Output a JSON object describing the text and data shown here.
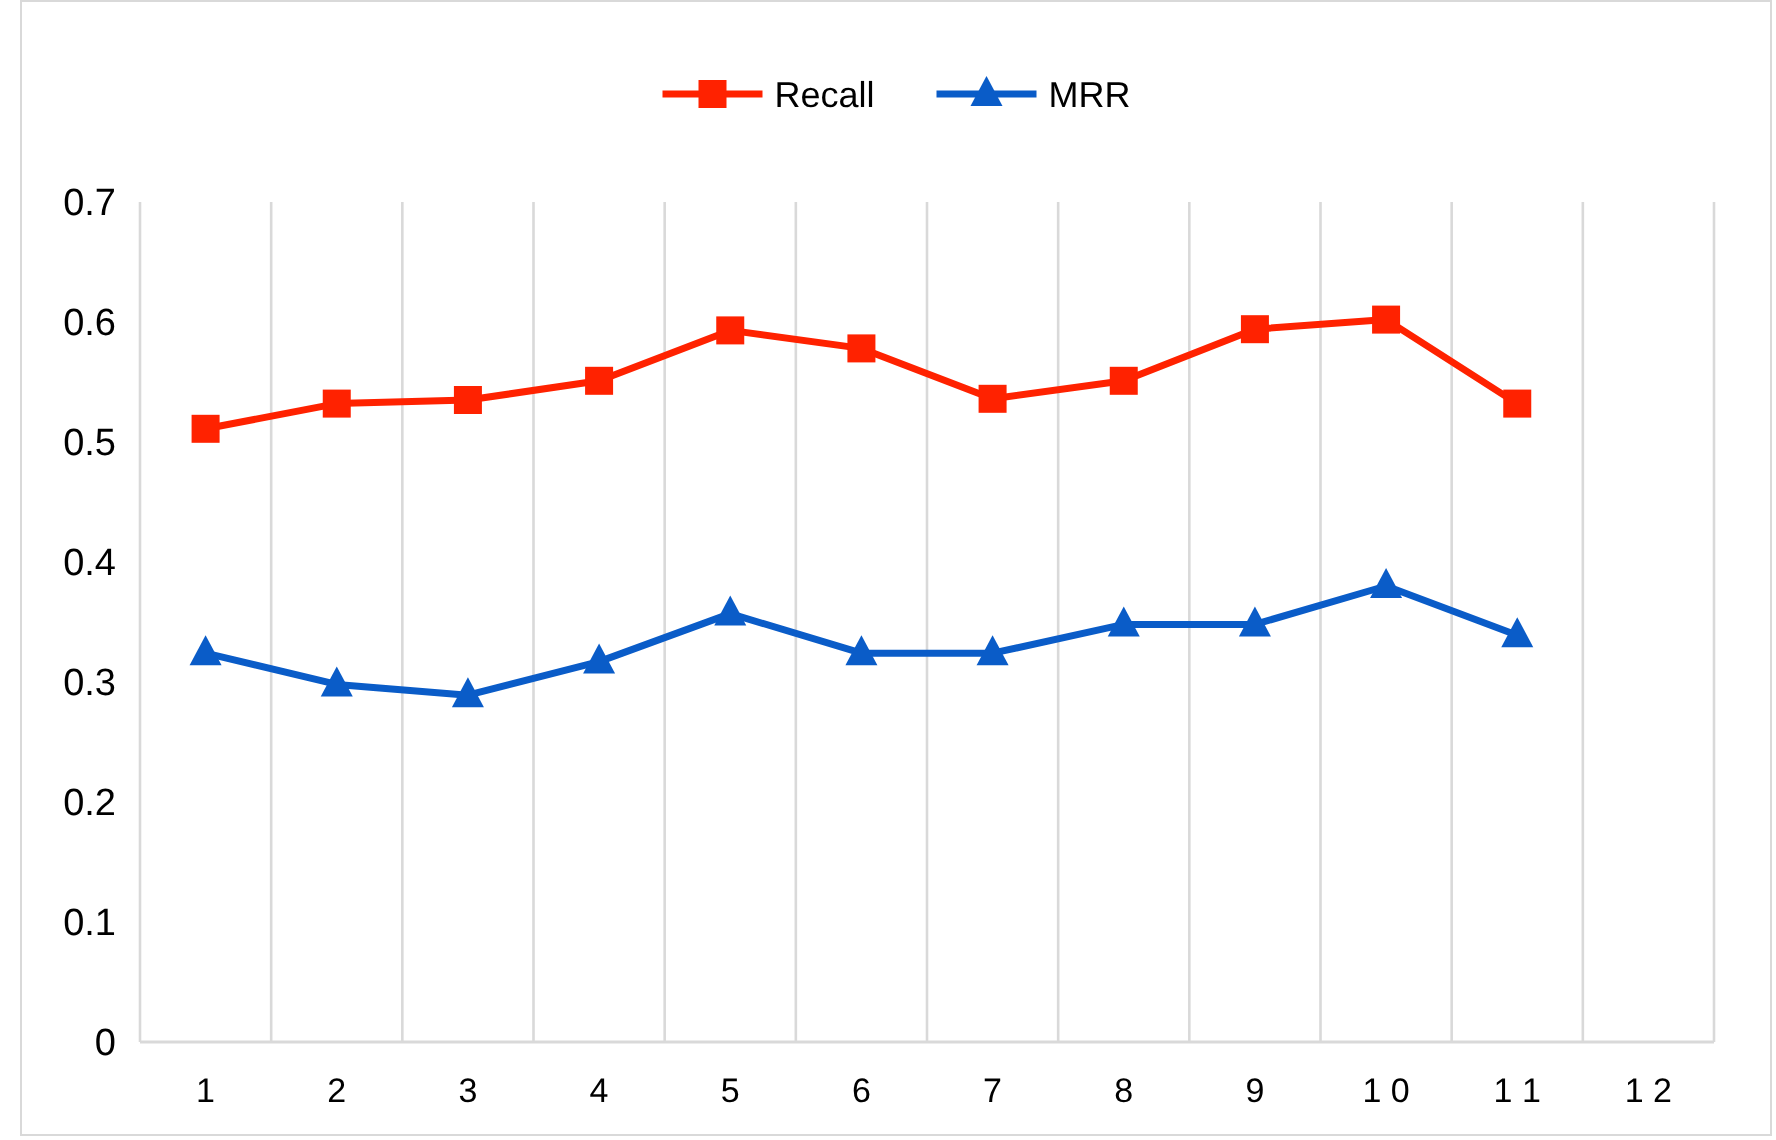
{
  "chart_data": {
    "type": "line",
    "categories": [
      "1",
      "2",
      "3",
      "4",
      "5",
      "6",
      "7",
      "8",
      "9",
      "1 0",
      "1 1",
      "1 2"
    ],
    "series": [
      {
        "name": "Recall",
        "color": "#ff2200",
        "marker": "square",
        "values": [
          0.511,
          0.532,
          0.535,
          0.551,
          0.593,
          0.578,
          0.536,
          0.551,
          0.594,
          0.602,
          0.532,
          null
        ]
      },
      {
        "name": "MRR",
        "color": "#0a5cc8",
        "marker": "triangle",
        "values": [
          0.324,
          0.298,
          0.289,
          0.317,
          0.357,
          0.324,
          0.324,
          0.348,
          0.348,
          0.38,
          0.339,
          null
        ]
      }
    ],
    "ylim": [
      0,
      0.7
    ],
    "yticks": [
      0,
      0.1,
      0.2,
      0.3,
      0.4,
      0.5,
      0.6,
      0.7
    ],
    "grid": "x",
    "legend": "top",
    "line_style": "solid"
  }
}
